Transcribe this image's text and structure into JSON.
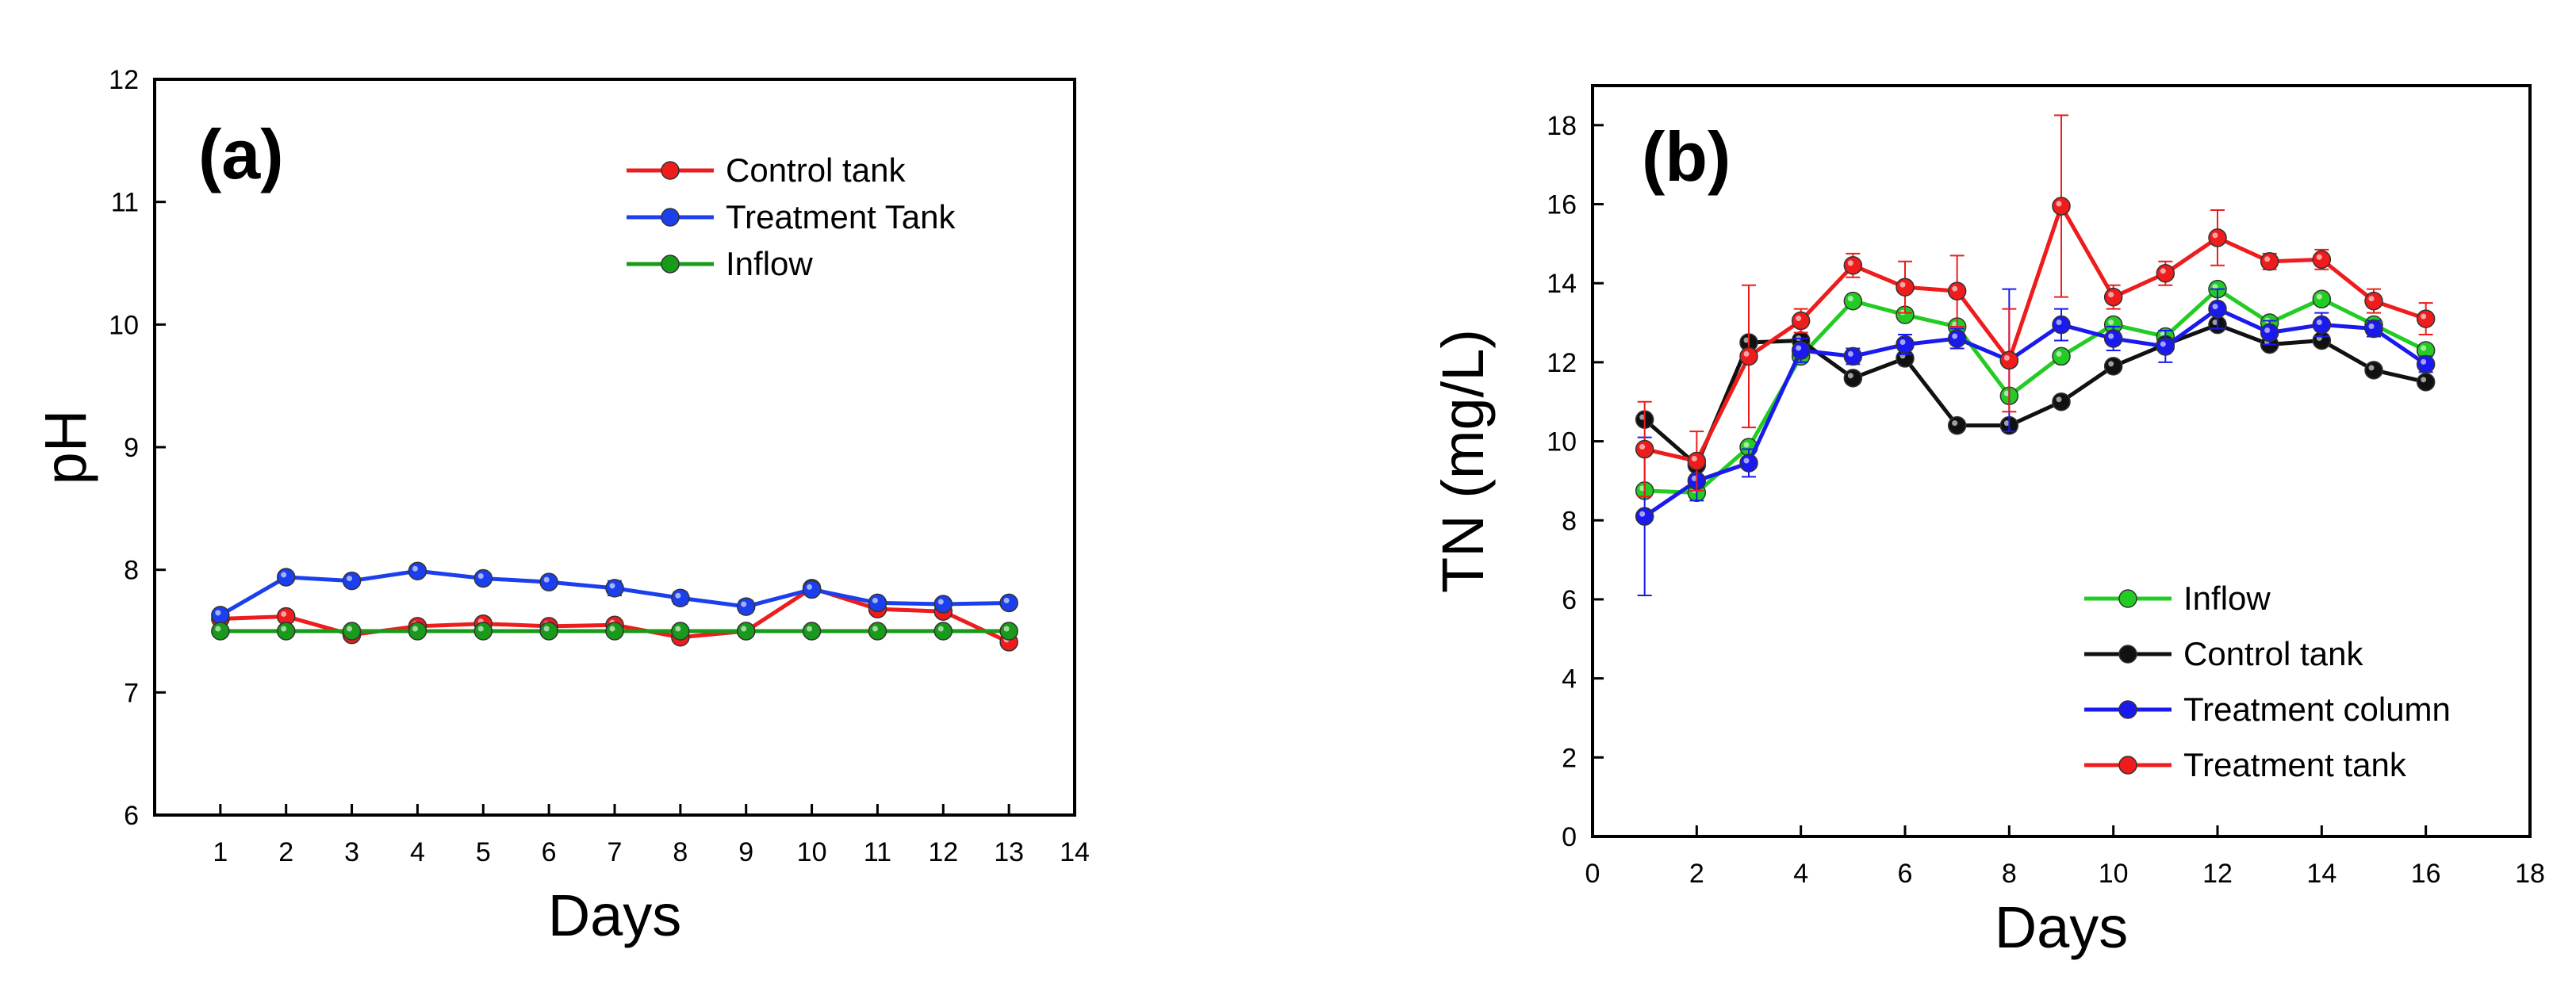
{
  "chart_data": [
    {
      "type": "line",
      "panel_label": "(a)",
      "xlabel": "Days",
      "ylabel": "pH",
      "xlim": [
        0,
        14
      ],
      "ylim": [
        6,
        12
      ],
      "xticks": [
        1,
        2,
        3,
        4,
        5,
        6,
        7,
        8,
        9,
        10,
        11,
        12,
        13,
        14
      ],
      "yticks": [
        6,
        7,
        8,
        9,
        10,
        11,
        12
      ],
      "legend_position": "top-right",
      "series": [
        {
          "name": "Control tank",
          "color": "#ee1c1c",
          "x": [
            1,
            2,
            3,
            4,
            5,
            6,
            7,
            8,
            9,
            10,
            11,
            12,
            13
          ],
          "y": [
            7.6,
            7.62,
            7.47,
            7.54,
            7.56,
            7.54,
            7.55,
            7.45,
            7.5,
            7.85,
            7.68,
            7.66,
            7.41
          ],
          "err": [
            0.02,
            0.02,
            0.02,
            0.02,
            0.02,
            0.02,
            0.03,
            0.03,
            0.02,
            0.03,
            0.03,
            0.02,
            0.03
          ]
        },
        {
          "name": "Treatment Tank",
          "color": "#1c3fee",
          "x": [
            1,
            2,
            3,
            4,
            5,
            6,
            7,
            8,
            9,
            10,
            11,
            12,
            13
          ],
          "y": [
            7.63,
            7.94,
            7.91,
            7.99,
            7.93,
            7.9,
            7.85,
            7.77,
            7.7,
            7.84,
            7.73,
            7.72,
            7.73
          ],
          "err": [
            0.03,
            0.02,
            0.02,
            0.02,
            0.02,
            0.02,
            0.06,
            0.05,
            0.05,
            0.04,
            0.03,
            0.02,
            0.03
          ]
        },
        {
          "name": "Inflow",
          "color": "#1a9a1a",
          "x": [
            1,
            2,
            3,
            4,
            5,
            6,
            7,
            8,
            9,
            10,
            11,
            12,
            13
          ],
          "y": [
            7.5,
            7.5,
            7.5,
            7.5,
            7.5,
            7.5,
            7.5,
            7.5,
            7.5,
            7.5,
            7.5,
            7.5,
            7.5
          ],
          "err": [
            0,
            0,
            0,
            0,
            0,
            0,
            0,
            0,
            0,
            0,
            0,
            0,
            0
          ]
        }
      ]
    },
    {
      "type": "line",
      "panel_label": "(b)",
      "xlabel": "Days",
      "ylabel": "TN (mg/L)",
      "xlim": [
        0,
        18
      ],
      "ylim": [
        0,
        19
      ],
      "xticks": [
        0,
        2,
        4,
        6,
        8,
        10,
        12,
        14,
        16,
        18
      ],
      "yticks": [
        0,
        2,
        4,
        6,
        8,
        10,
        12,
        14,
        16,
        18
      ],
      "legend_position": "bottom-right",
      "series": [
        {
          "name": "Inflow",
          "color": "#22cc22",
          "x": [
            1,
            2,
            3,
            4,
            5,
            6,
            7,
            8,
            9,
            10,
            11,
            12,
            13,
            14,
            15,
            16
          ],
          "y": [
            8.75,
            8.7,
            9.85,
            12.15,
            13.55,
            13.2,
            12.9,
            11.15,
            12.15,
            12.95,
            12.65,
            13.85,
            13.0,
            13.6,
            12.95,
            12.3
          ],
          "err": [
            0,
            0,
            0,
            0,
            0,
            0,
            0,
            0,
            0,
            0,
            0,
            0,
            0,
            0,
            0,
            0
          ]
        },
        {
          "name": "Control tank",
          "color": "#111111",
          "x": [
            1,
            2,
            3,
            4,
            5,
            6,
            7,
            8,
            9,
            10,
            11,
            12,
            13,
            14,
            15,
            16
          ],
          "y": [
            10.55,
            9.4,
            12.5,
            12.55,
            11.6,
            12.1,
            10.4,
            10.4,
            11.0,
            11.9,
            12.45,
            12.95,
            12.45,
            12.55,
            11.8,
            11.5
          ],
          "err": [
            0,
            0,
            0,
            0,
            0,
            0,
            0,
            0,
            0,
            0,
            0,
            0,
            0,
            0,
            0,
            0
          ]
        },
        {
          "name": "Treatment column",
          "color": "#1a1aee",
          "x": [
            1,
            2,
            3,
            4,
            5,
            6,
            7,
            8,
            9,
            10,
            11,
            12,
            13,
            14,
            15,
            16
          ],
          "y": [
            8.1,
            9.0,
            9.45,
            12.3,
            12.15,
            12.45,
            12.6,
            12.05,
            12.95,
            12.6,
            12.4,
            13.35,
            12.75,
            12.95,
            12.85,
            11.95
          ],
          "err": [
            2.0,
            0.5,
            0.35,
            0.3,
            0.2,
            0.25,
            0.25,
            1.8,
            0.4,
            0.3,
            0.4,
            0.5,
            0.3,
            0.3,
            0.2,
            0.2
          ]
        },
        {
          "name": "Treatment tank",
          "color": "#ee1c1c",
          "x": [
            1,
            2,
            3,
            4,
            5,
            6,
            7,
            8,
            9,
            10,
            11,
            12,
            13,
            14,
            15,
            16
          ],
          "y": [
            9.8,
            9.5,
            12.15,
            13.05,
            14.45,
            13.9,
            13.8,
            12.05,
            15.95,
            13.65,
            14.25,
            15.15,
            14.55,
            14.6,
            13.55,
            13.1
          ],
          "err": [
            1.2,
            0.75,
            1.8,
            0.3,
            0.3,
            0.65,
            0.9,
            1.3,
            2.3,
            0.3,
            0.3,
            0.7,
            0.2,
            0.25,
            0.3,
            0.4
          ]
        }
      ]
    }
  ]
}
